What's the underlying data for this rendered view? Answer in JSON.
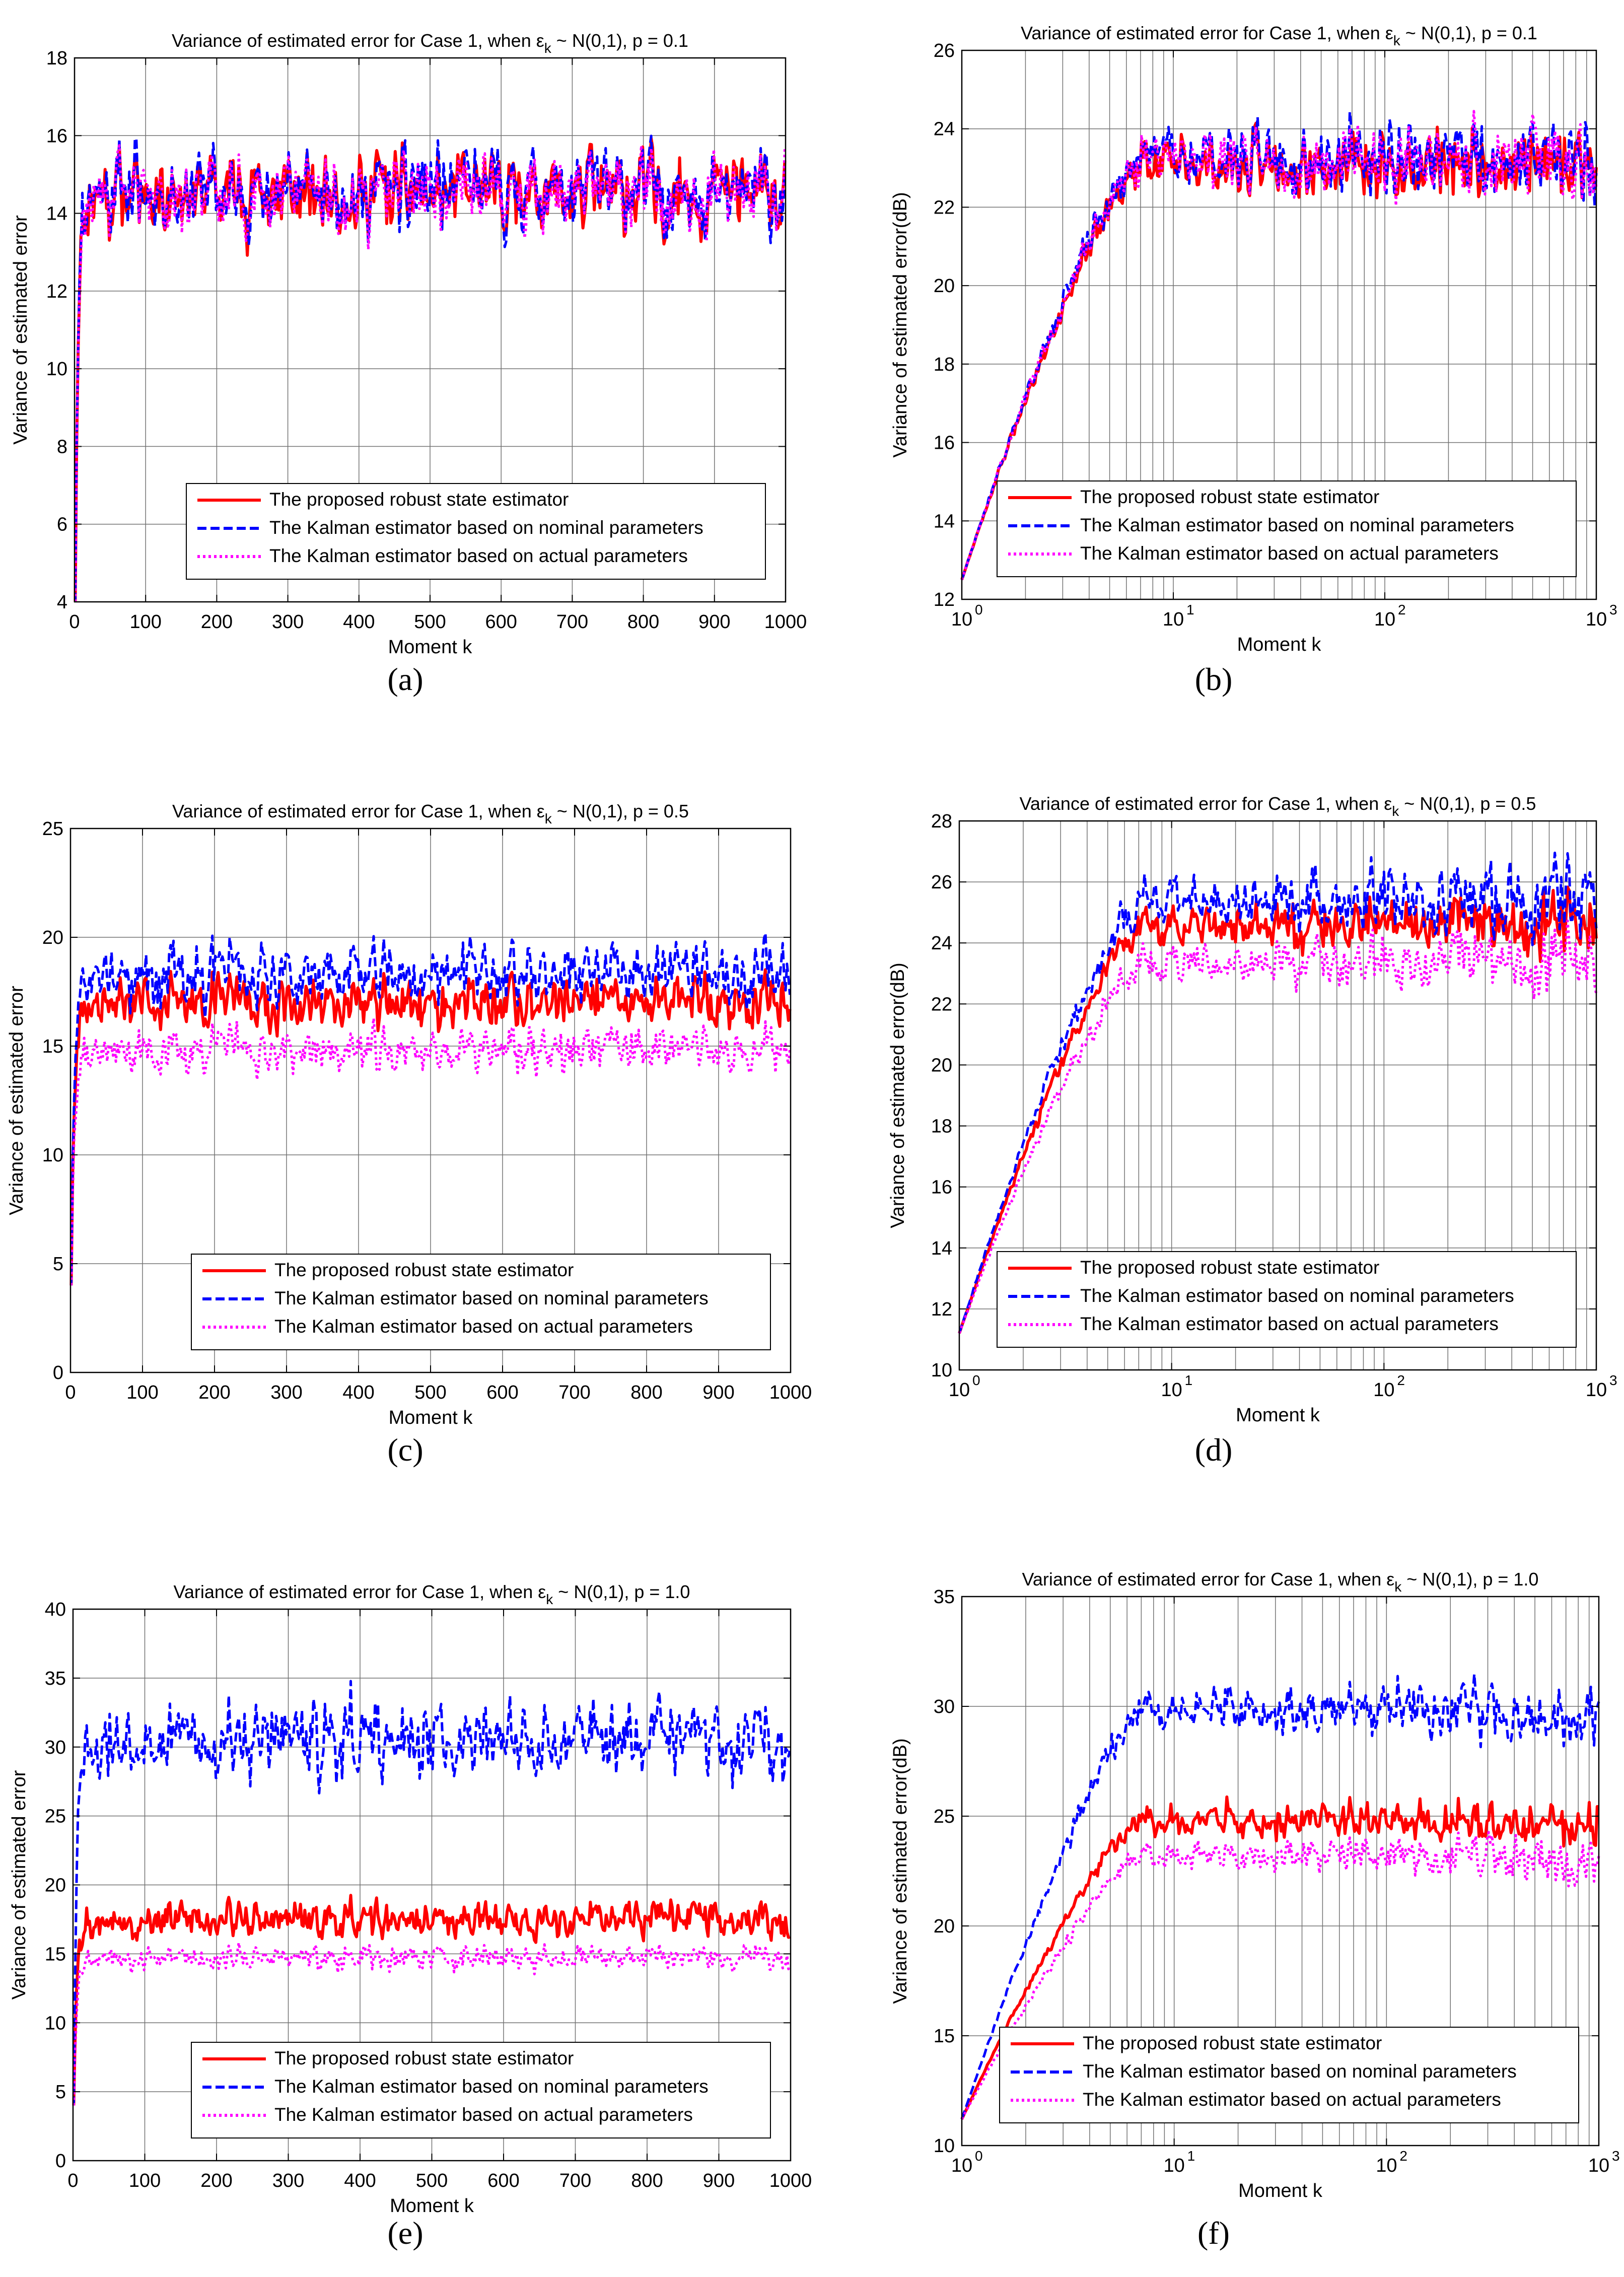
{
  "figure": {
    "panels": [
      {
        "id": "a",
        "caption": "(a)",
        "title": {
          "prefix": "Variance of estimated error for Case 1, when ",
          "eps": "ε",
          "sub": "k",
          "suffix": " ~ N(0,1), p = 0.1"
        },
        "xlabel": "Moment k",
        "ylabel": "Variance of estimated error",
        "xscale": "linear",
        "xlim": [
          0,
          1000
        ],
        "ylim": [
          4,
          18
        ],
        "xticks": [
          0,
          100,
          200,
          300,
          400,
          500,
          600,
          700,
          800,
          900,
          1000
        ],
        "yticks": [
          4,
          6,
          8,
          10,
          12,
          14,
          16,
          18
        ],
        "legend": "bottom-right",
        "legend_labels": [
          "The proposed robust state estimator",
          "The Kalman estimator based on nominal parameters",
          "The Kalman estimator based on actual parameters"
        ],
        "series_levels": [
          14.5,
          14.6,
          14.5
        ],
        "series_noise": [
          0.7,
          0.75,
          0.7
        ],
        "start_value": 4,
        "seed": 11
      },
      {
        "id": "b",
        "caption": "(b)",
        "title": {
          "prefix": "Variance of estimated error for Case 1, when ",
          "eps": "ε",
          "sub": "k",
          "suffix": " ~ N(0,1), p = 0.1"
        },
        "xlabel": "Moment k",
        "ylabel": "Variance of estimated error(dB)",
        "xscale": "log",
        "xlim": [
          1,
          1000
        ],
        "ylim": [
          12,
          26
        ],
        "xticks": [
          1,
          10,
          100,
          1000
        ],
        "xtick_labels": [
          "10",
          "10",
          "10",
          "10"
        ],
        "xtick_exps": [
          "0",
          "1",
          "2",
          "3"
        ],
        "yticks": [
          12,
          14,
          16,
          18,
          20,
          22,
          24,
          26
        ],
        "legend": "bottom-right",
        "legend_labels": [
          "The proposed robust state estimator",
          "The Kalman estimator based on nominal parameters",
          "The Kalman estimator based on actual parameters"
        ],
        "series_levels": [
          23.1,
          23.3,
          23.2
        ],
        "series_noise": [
          0.5,
          0.55,
          0.5
        ],
        "start_value": 12.5,
        "seed": 23
      },
      {
        "id": "c",
        "caption": "(c)",
        "title": {
          "prefix": "Variance of estimated error for Case 1, when ",
          "eps": "ε",
          "sub": "k",
          "suffix": " ~ N(0,1), p = 0.5"
        },
        "xlabel": "Moment k",
        "ylabel": "Variance of estimated error",
        "xscale": "linear",
        "xlim": [
          0,
          1000
        ],
        "ylim": [
          0,
          25
        ],
        "xticks": [
          0,
          100,
          200,
          300,
          400,
          500,
          600,
          700,
          800,
          900,
          1000
        ],
        "yticks": [
          0,
          5,
          10,
          15,
          20,
          25
        ],
        "legend": "bottom-right",
        "legend_labels": [
          "The proposed robust state estimator",
          "The Kalman estimator based on nominal parameters",
          "The Kalman estimator based on actual parameters"
        ],
        "series_levels": [
          17.0,
          18.3,
          14.8
        ],
        "series_noise": [
          0.8,
          1.0,
          0.7
        ],
        "start_value": 4,
        "seed": 37
      },
      {
        "id": "d",
        "caption": "(d)",
        "title": {
          "prefix": "Variance of estimated error for Case 1, when ",
          "eps": "ε",
          "sub": "k",
          "suffix": " ~ N(0,1), p = 0.5"
        },
        "xlabel": "Moment k",
        "ylabel": "Variance of estimated error(dB)",
        "xscale": "log",
        "xlim": [
          1,
          1000
        ],
        "ylim": [
          10,
          28
        ],
        "xticks": [
          1,
          10,
          100,
          1000
        ],
        "xtick_labels": [
          "10",
          "10",
          "10",
          "10"
        ],
        "xtick_exps": [
          "0",
          "1",
          "2",
          "3"
        ],
        "yticks": [
          10,
          12,
          14,
          16,
          18,
          20,
          22,
          24,
          26,
          28
        ],
        "legend": "bottom-right",
        "legend_labels": [
          "The proposed robust state estimator",
          "The Kalman estimator based on nominal parameters",
          "The Kalman estimator based on actual parameters"
        ],
        "series_levels": [
          24.6,
          25.4,
          23.4
        ],
        "series_noise": [
          0.5,
          0.6,
          0.5
        ],
        "start_value": 11.2,
        "seed": 41
      },
      {
        "id": "e",
        "caption": "(e)",
        "title": {
          "prefix": "Variance of estimated error for Case 1, when ",
          "eps": "ε",
          "sub": "k",
          "suffix": " ~ N(0,1), p = 1.0"
        },
        "xlabel": "Moment k",
        "ylabel": "Variance of estimated error",
        "xscale": "linear",
        "xlim": [
          0,
          1000
        ],
        "ylim": [
          0,
          40
        ],
        "xticks": [
          0,
          100,
          200,
          300,
          400,
          500,
          600,
          700,
          800,
          900,
          1000
        ],
        "yticks": [
          0,
          5,
          10,
          15,
          20,
          25,
          30,
          35,
          40
        ],
        "legend": "bottom-right",
        "legend_labels": [
          "The proposed robust state estimator",
          "The Kalman estimator based on nominal parameters",
          "The Kalman estimator based on actual parameters"
        ],
        "series_levels": [
          17.5,
          30.5,
          14.7
        ],
        "series_noise": [
          0.9,
          2.0,
          0.6
        ],
        "start_value": 4,
        "seed": 53
      },
      {
        "id": "f",
        "caption": "(f)",
        "title": {
          "prefix": "Variance of estimated error for Case 1, when ",
          "eps": "ε",
          "sub": "k",
          "suffix": " ~ N(0,1), p = 1.0"
        },
        "xlabel": "Moment k",
        "ylabel": "Variance of estimated error(dB)",
        "xscale": "log",
        "xlim": [
          1,
          1000
        ],
        "ylim": [
          10,
          35
        ],
        "xticks": [
          1,
          10,
          100,
          1000
        ],
        "xtick_labels": [
          "10",
          "10",
          "10",
          "10"
        ],
        "xtick_exps": [
          "0",
          "1",
          "2",
          "3"
        ],
        "yticks": [
          10,
          15,
          20,
          25,
          30,
          35
        ],
        "legend": "bottom-right",
        "legend_labels": [
          "The proposed robust state estimator",
          "The Kalman estimator based on nominal parameters",
          "The Kalman estimator based on actual parameters"
        ],
        "series_levels": [
          24.8,
          29.8,
          23.2
        ],
        "series_noise": [
          0.5,
          0.7,
          0.5
        ],
        "start_value": 11.2,
        "seed": 67
      }
    ],
    "series_styles": [
      {
        "color": "#ff0000",
        "dash": "solid"
      },
      {
        "color": "#0000ff",
        "dash": "dashed"
      },
      {
        "color": "#ff00ff",
        "dash": "dotted"
      }
    ]
  },
  "chart_data": [
    {
      "type": "line",
      "title": "Variance of estimated error for Case 1, when εk ~ N(0,1), p = 0.1",
      "xlabel": "Moment k",
      "ylabel": "Variance of estimated error",
      "xlim": [
        0,
        1000
      ],
      "ylim": [
        4,
        18
      ],
      "grid": true,
      "legend": "bottom-right",
      "x": [
        1,
        10,
        100,
        200,
        300,
        400,
        500,
        600,
        700,
        800,
        900,
        1000
      ],
      "series": [
        {
          "name": "The proposed robust state estimator",
          "values": [
            4,
            14.2,
            14.5,
            14.6,
            14.4,
            14.5,
            14.3,
            14.7,
            14.5,
            14.6,
            14.5,
            14.4
          ]
        },
        {
          "name": "The Kalman estimator based on nominal parameters",
          "values": [
            4,
            14.3,
            14.6,
            14.7,
            14.5,
            14.6,
            14.4,
            14.8,
            14.6,
            14.7,
            14.6,
            14.5
          ]
        },
        {
          "name": "The Kalman estimator based on actual parameters",
          "values": [
            4,
            14.2,
            14.5,
            14.6,
            14.4,
            14.5,
            14.3,
            14.7,
            14.5,
            14.6,
            14.5,
            14.4
          ]
        }
      ]
    },
    {
      "type": "line",
      "title": "Variance of estimated error for Case 1, when εk ~ N(0,1), p = 0.1",
      "xlabel": "Moment k",
      "ylabel": "Variance of estimated error(dB)",
      "xscale": "log",
      "xlim": [
        1,
        1000
      ],
      "ylim": [
        12,
        26
      ],
      "grid": true,
      "legend": "bottom-right",
      "x": [
        1,
        2,
        3,
        5,
        7,
        10,
        15,
        20,
        50,
        100,
        300,
        1000
      ],
      "series": [
        {
          "name": "The proposed robust state estimator",
          "values": [
            12.5,
            16.8,
            18.7,
            21.8,
            22.8,
            22.5,
            23.9,
            23.9,
            23.0,
            23.0,
            23.1,
            23.0
          ]
        },
        {
          "name": "The Kalman estimator based on nominal parameters",
          "values": [
            12.5,
            16.9,
            18.8,
            22.0,
            22.9,
            23.0,
            24.0,
            24.0,
            23.2,
            23.3,
            23.4,
            23.4
          ]
        },
        {
          "name": "The Kalman estimator based on actual parameters",
          "values": [
            12.5,
            16.8,
            18.7,
            21.9,
            22.8,
            22.9,
            23.9,
            23.9,
            23.1,
            23.2,
            23.2,
            23.1
          ]
        }
      ]
    },
    {
      "type": "line",
      "title": "Variance of estimated error for Case 1, when εk ~ N(0,1), p = 0.5",
      "xlabel": "Moment k",
      "ylabel": "Variance of estimated error",
      "xlim": [
        0,
        1000
      ],
      "ylim": [
        0,
        25
      ],
      "grid": true,
      "legend": "bottom-right",
      "x": [
        1,
        10,
        100,
        200,
        300,
        400,
        500,
        600,
        700,
        800,
        900,
        1000
      ],
      "series": [
        {
          "name": "The proposed robust state estimator",
          "values": [
            4,
            16.5,
            17.0,
            17.2,
            17.0,
            16.8,
            17.1,
            17.0,
            17.3,
            16.9,
            17.1,
            17.0
          ]
        },
        {
          "name": "The Kalman estimator based on nominal parameters",
          "values": [
            4,
            17.5,
            18.4,
            18.3,
            18.5,
            18.0,
            18.4,
            18.2,
            18.6,
            18.1,
            18.5,
            18.3
          ]
        },
        {
          "name": "The Kalman estimator based on actual parameters",
          "values": [
            4,
            14.2,
            14.8,
            14.9,
            14.7,
            14.6,
            14.9,
            14.7,
            14.9,
            14.6,
            14.8,
            14.7
          ]
        }
      ]
    },
    {
      "type": "line",
      "title": "Variance of estimated error for Case 1, when εk ~ N(0,1), p = 0.5",
      "xlabel": "Moment k",
      "ylabel": "Variance of estimated error(dB)",
      "xscale": "log",
      "xlim": [
        1,
        1000
      ],
      "ylim": [
        10,
        28
      ],
      "grid": true,
      "legend": "bottom-right",
      "x": [
        1,
        2,
        3,
        5,
        7,
        10,
        20,
        50,
        100,
        300,
        1000
      ],
      "series": [
        {
          "name": "The proposed robust state estimator",
          "values": [
            11.2,
            17.0,
            19.4,
            21.6,
            22.4,
            24.1,
            24.2,
            24.6,
            24.6,
            24.6,
            24.5
          ]
        },
        {
          "name": "The Kalman estimator based on nominal parameters",
          "values": [
            11.2,
            17.0,
            19.5,
            22.2,
            22.9,
            24.7,
            24.9,
            25.4,
            25.4,
            25.5,
            25.6
          ]
        },
        {
          "name": "The Kalman estimator based on actual parameters",
          "values": [
            11.2,
            17.0,
            19.4,
            21.5,
            21.8,
            22.6,
            23.0,
            23.4,
            23.4,
            23.5,
            23.3
          ]
        }
      ]
    },
    {
      "type": "line",
      "title": "Variance of estimated error for Case 1, when εk ~ N(0,1), p = 1.0",
      "xlabel": "Moment k",
      "ylabel": "Variance of estimated error",
      "xlim": [
        0,
        1000
      ],
      "ylim": [
        0,
        40
      ],
      "grid": true,
      "legend": "bottom-right",
      "x": [
        1,
        10,
        100,
        200,
        300,
        400,
        500,
        600,
        700,
        800,
        900,
        1000
      ],
      "series": [
        {
          "name": "The proposed robust state estimator",
          "values": [
            4,
            17.0,
            17.5,
            17.6,
            17.4,
            17.5,
            17.6,
            17.4,
            17.5,
            17.6,
            17.4,
            17.5
          ]
        },
        {
          "name": "The Kalman estimator based on nominal parameters",
          "values": [
            4,
            28.0,
            30.5,
            31.5,
            30.8,
            31.0,
            30.5,
            30.2,
            30.6,
            30.3,
            30.0,
            30.0
          ]
        },
        {
          "name": "The Kalman estimator based on actual parameters",
          "values": [
            4,
            14.4,
            14.7,
            14.8,
            14.6,
            14.7,
            14.8,
            14.6,
            14.7,
            14.8,
            14.6,
            14.7
          ]
        }
      ]
    },
    {
      "type": "line",
      "title": "Variance of estimated error for Case 1, when εk ~ N(0,1), p = 1.0",
      "xlabel": "Moment k",
      "ylabel": "Variance of estimated error(dB)",
      "xscale": "log",
      "xlim": [
        1,
        1000
      ],
      "ylim": [
        10,
        35
      ],
      "grid": true,
      "legend": "bottom-right",
      "x": [
        1,
        2,
        3,
        5,
        7,
        10,
        20,
        50,
        100,
        300,
        1000
      ],
      "series": [
        {
          "name": "The proposed robust state estimator",
          "values": [
            11.2,
            16.0,
            19.4,
            21.8,
            23.0,
            24.7,
            25.0,
            24.6,
            24.8,
            24.9,
            24.8
          ]
        },
        {
          "name": "The Kalman estimator based on nominal parameters",
          "values": [
            11.2,
            16.1,
            19.5,
            23.5,
            25.5,
            28.3,
            30.3,
            29.0,
            29.7,
            30.5,
            29.8
          ]
        },
        {
          "name": "The Kalman estimator based on actual parameters",
          "values": [
            11.2,
            16.0,
            19.4,
            21.3,
            22.3,
            23.3,
            23.2,
            22.9,
            23.2,
            23.3,
            23.2
          ]
        }
      ]
    }
  ]
}
